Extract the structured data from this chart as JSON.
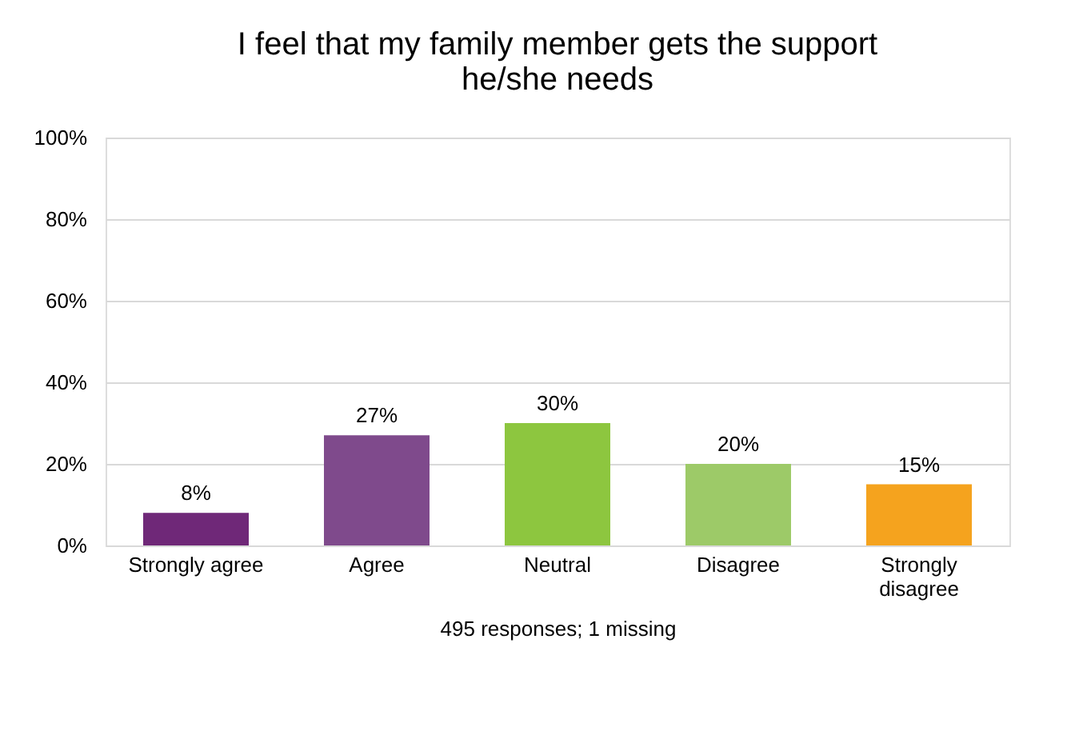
{
  "chart_data": {
    "type": "bar",
    "title": "I feel that my family member gets the support he/she needs",
    "categories": [
      "Strongly agree",
      "Agree",
      "Neutral",
      "Disagree",
      "Strongly disagree"
    ],
    "values": [
      8,
      27,
      30,
      20,
      15
    ],
    "colors": [
      "#6f2878",
      "#7f4a8c",
      "#8dc63f",
      "#9dca68",
      "#f5a31e"
    ],
    "value_labels": [
      "8%",
      "27%",
      "30%",
      "20%",
      "15%"
    ],
    "ylim": [
      0,
      100
    ],
    "yticks": [
      {
        "value": 0,
        "label": "0%"
      },
      {
        "value": 20,
        "label": "20%"
      },
      {
        "value": 40,
        "label": "40%"
      },
      {
        "value": 60,
        "label": "60%"
      },
      {
        "value": 80,
        "label": "80%"
      },
      {
        "value": 100,
        "label": "100%"
      }
    ],
    "grid": "y",
    "legend": false,
    "annotations": [
      "495 responses; 1 missing"
    ]
  }
}
